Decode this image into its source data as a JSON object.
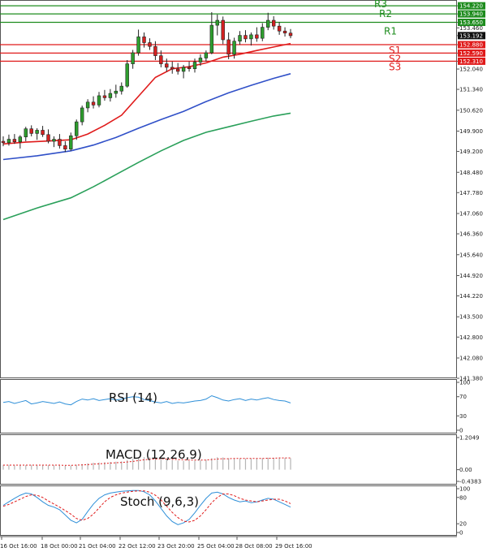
{
  "chart_data": [
    {
      "type": "candlestick",
      "title": "",
      "price_axis": {
        "ticks": [
          154.22,
          153.94,
          153.65,
          153.46,
          153.192,
          152.88,
          152.59,
          152.31,
          152.04,
          151.34,
          150.62,
          149.9,
          149.2,
          148.48,
          147.78,
          147.06,
          146.36,
          145.64,
          144.92,
          144.22,
          143.5,
          142.8,
          142.08,
          141.38
        ],
        "ylim": [
          141.38,
          154.42
        ]
      },
      "time_labels": [
        "16 Oct 16:00",
        "18 Oct 00:00",
        "21 Oct 04:00",
        "22 Oct 12:00",
        "23 Oct 20:00",
        "25 Oct 04:00",
        "28 Oct 08:00",
        "29 Oct 16:00"
      ],
      "current_price": 153.192,
      "levels": [
        {
          "name": "R3",
          "value": 154.22,
          "color": "#1e8c1e"
        },
        {
          "name": "R2",
          "value": 153.94,
          "color": "#1e8c1e"
        },
        {
          "name": "R1",
          "value": 153.65,
          "color": "#1e8c1e"
        },
        {
          "name": "S1",
          "value": 152.88,
          "color": "#e01b1b"
        },
        {
          "name": "S2",
          "value": 152.59,
          "color": "#e01b1b"
        },
        {
          "name": "S3",
          "value": 152.31,
          "color": "#e01b1b"
        }
      ],
      "candles": [
        {
          "o": 149.55,
          "h": 149.72,
          "l": 149.38,
          "c": 149.5
        },
        {
          "o": 149.5,
          "h": 149.78,
          "l": 149.4,
          "c": 149.62
        },
        {
          "o": 149.62,
          "h": 149.8,
          "l": 149.46,
          "c": 149.53
        },
        {
          "o": 149.53,
          "h": 149.76,
          "l": 149.3,
          "c": 149.7
        },
        {
          "o": 149.7,
          "h": 150.05,
          "l": 149.55,
          "c": 149.98
        },
        {
          "o": 149.98,
          "h": 150.1,
          "l": 149.72,
          "c": 149.82
        },
        {
          "o": 149.82,
          "h": 150.0,
          "l": 149.6,
          "c": 149.93
        },
        {
          "o": 149.93,
          "h": 150.08,
          "l": 149.7,
          "c": 149.78
        },
        {
          "o": 149.78,
          "h": 149.96,
          "l": 149.48,
          "c": 149.55
        },
        {
          "o": 149.55,
          "h": 149.72,
          "l": 149.35,
          "c": 149.62
        },
        {
          "o": 149.62,
          "h": 149.8,
          "l": 149.3,
          "c": 149.4
        },
        {
          "o": 149.4,
          "h": 149.55,
          "l": 149.18,
          "c": 149.28
        },
        {
          "o": 149.28,
          "h": 149.85,
          "l": 149.22,
          "c": 149.74
        },
        {
          "o": 149.74,
          "h": 150.3,
          "l": 149.6,
          "c": 150.22
        },
        {
          "o": 150.22,
          "h": 150.78,
          "l": 150.1,
          "c": 150.7
        },
        {
          "o": 150.7,
          "h": 151.0,
          "l": 150.55,
          "c": 150.9
        },
        {
          "o": 150.9,
          "h": 151.1,
          "l": 150.68,
          "c": 150.8
        },
        {
          "o": 150.8,
          "h": 151.25,
          "l": 150.72,
          "c": 151.12
        },
        {
          "o": 151.12,
          "h": 151.32,
          "l": 150.95,
          "c": 151.05
        },
        {
          "o": 151.05,
          "h": 151.35,
          "l": 150.92,
          "c": 151.2
        },
        {
          "o": 151.2,
          "h": 151.5,
          "l": 151.05,
          "c": 151.28
        },
        {
          "o": 151.28,
          "h": 151.58,
          "l": 151.16,
          "c": 151.45
        },
        {
          "o": 151.45,
          "h": 152.35,
          "l": 151.4,
          "c": 152.22
        },
        {
          "o": 152.22,
          "h": 152.7,
          "l": 152.05,
          "c": 152.6
        },
        {
          "o": 152.6,
          "h": 153.4,
          "l": 152.5,
          "c": 153.15
        },
        {
          "o": 153.15,
          "h": 153.3,
          "l": 152.78,
          "c": 152.95
        },
        {
          "o": 152.95,
          "h": 153.1,
          "l": 152.7,
          "c": 152.82
        },
        {
          "o": 152.82,
          "h": 153.0,
          "l": 152.35,
          "c": 152.5
        },
        {
          "o": 152.5,
          "h": 152.68,
          "l": 152.1,
          "c": 152.22
        },
        {
          "o": 152.22,
          "h": 152.4,
          "l": 151.95,
          "c": 152.1
        },
        {
          "o": 152.1,
          "h": 152.3,
          "l": 151.88,
          "c": 152.04
        },
        {
          "o": 152.04,
          "h": 152.25,
          "l": 151.85,
          "c": 151.96
        },
        {
          "o": 151.96,
          "h": 152.18,
          "l": 151.72,
          "c": 152.1
        },
        {
          "o": 152.1,
          "h": 152.3,
          "l": 151.95,
          "c": 152.05
        },
        {
          "o": 152.05,
          "h": 152.4,
          "l": 151.92,
          "c": 152.28
        },
        {
          "o": 152.28,
          "h": 152.55,
          "l": 152.15,
          "c": 152.42
        },
        {
          "o": 152.42,
          "h": 152.68,
          "l": 152.3,
          "c": 152.6
        },
        {
          "o": 152.6,
          "h": 154.0,
          "l": 152.55,
          "c": 153.55
        },
        {
          "o": 153.55,
          "h": 153.92,
          "l": 153.2,
          "c": 153.72
        },
        {
          "o": 153.72,
          "h": 153.85,
          "l": 152.9,
          "c": 153.05
        },
        {
          "o": 153.05,
          "h": 153.3,
          "l": 152.38,
          "c": 152.55
        },
        {
          "o": 152.55,
          "h": 153.12,
          "l": 152.4,
          "c": 153.0
        },
        {
          "o": 153.0,
          "h": 153.35,
          "l": 152.88,
          "c": 153.2
        },
        {
          "o": 153.2,
          "h": 153.38,
          "l": 152.96,
          "c": 153.08
        },
        {
          "o": 153.08,
          "h": 153.3,
          "l": 152.85,
          "c": 153.22
        },
        {
          "o": 153.22,
          "h": 153.48,
          "l": 152.98,
          "c": 153.1
        },
        {
          "o": 153.1,
          "h": 153.62,
          "l": 153.0,
          "c": 153.48
        },
        {
          "o": 153.48,
          "h": 153.98,
          "l": 153.38,
          "c": 153.72
        },
        {
          "o": 153.72,
          "h": 153.86,
          "l": 153.4,
          "c": 153.52
        },
        {
          "o": 153.52,
          "h": 153.66,
          "l": 153.22,
          "c": 153.35
        },
        {
          "o": 153.35,
          "h": 153.48,
          "l": 153.16,
          "c": 153.28
        },
        {
          "o": 153.28,
          "h": 153.42,
          "l": 153.1,
          "c": 153.19
        }
      ],
      "moving_averages": [
        {
          "color": "#e01b1b",
          "points": [
            [
              0,
              149.46
            ],
            [
              4,
              149.52
            ],
            [
              8,
              149.56
            ],
            [
              12,
              149.6
            ],
            [
              15,
              149.8
            ],
            [
              18,
              150.1
            ],
            [
              21,
              150.45
            ],
            [
              24,
              151.1
            ],
            [
              27,
              151.75
            ],
            [
              30,
              152.05
            ],
            [
              33,
              152.12
            ],
            [
              36,
              152.25
            ],
            [
              39,
              152.45
            ],
            [
              42,
              152.55
            ],
            [
              45,
              152.68
            ],
            [
              48,
              152.8
            ],
            [
              51,
              152.92
            ]
          ]
        },
        {
          "color": "#3050c8",
          "points": [
            [
              0,
              148.92
            ],
            [
              6,
              149.05
            ],
            [
              12,
              149.22
            ],
            [
              16,
              149.42
            ],
            [
              20,
              149.68
            ],
            [
              24,
              150.0
            ],
            [
              28,
              150.3
            ],
            [
              32,
              150.58
            ],
            [
              36,
              150.92
            ],
            [
              40,
              151.22
            ],
            [
              44,
              151.48
            ],
            [
              48,
              151.72
            ],
            [
              51,
              151.88
            ]
          ]
        },
        {
          "color": "#2aa05a",
          "points": [
            [
              0,
              146.85
            ],
            [
              6,
              147.25
            ],
            [
              12,
              147.6
            ],
            [
              16,
              147.98
            ],
            [
              20,
              148.4
            ],
            [
              24,
              148.82
            ],
            [
              28,
              149.22
            ],
            [
              32,
              149.58
            ],
            [
              36,
              149.86
            ],
            [
              40,
              150.05
            ],
            [
              44,
              150.24
            ],
            [
              48,
              150.42
            ],
            [
              51,
              150.52
            ]
          ]
        }
      ]
    },
    {
      "type": "line",
      "title": "RSI (14)",
      "ticks": [
        100,
        70,
        30,
        0
      ],
      "ylim": [
        0,
        100
      ],
      "series": [
        {
          "color": "#2e8fd8",
          "values": [
            58,
            60,
            56,
            59,
            62,
            55,
            57,
            60,
            58,
            56,
            59,
            55,
            53,
            60,
            65,
            63,
            66,
            62,
            64,
            66,
            63,
            65,
            68,
            70,
            69,
            64,
            62,
            59,
            57,
            60,
            56,
            58,
            57,
            59,
            61,
            62,
            65,
            72,
            68,
            63,
            61,
            64,
            66,
            62,
            65,
            63,
            66,
            68,
            64,
            62,
            61,
            57
          ]
        }
      ]
    },
    {
      "type": "bar",
      "title": "MACD (12,26,9)",
      "ticks": [
        1.2049,
        0.0,
        -0.4383
      ],
      "ylim": [
        -0.4383,
        1.2049
      ],
      "values": [
        0.18,
        0.18,
        0.17,
        0.17,
        0.17,
        0.18,
        0.18,
        0.18,
        0.17,
        0.17,
        0.16,
        0.15,
        0.16,
        0.18,
        0.21,
        0.24,
        0.26,
        0.27,
        0.28,
        0.29,
        0.3,
        0.31,
        0.36,
        0.41,
        0.46,
        0.47,
        0.47,
        0.45,
        0.42,
        0.39,
        0.36,
        0.34,
        0.33,
        0.33,
        0.34,
        0.35,
        0.37,
        0.43,
        0.47,
        0.46,
        0.43,
        0.42,
        0.42,
        0.42,
        0.42,
        0.42,
        0.43,
        0.45,
        0.45,
        0.45,
        0.44,
        0.43
      ],
      "signal": [
        0.17,
        0.17,
        0.17,
        0.17,
        0.17,
        0.17,
        0.17,
        0.17,
        0.17,
        0.17,
        0.17,
        0.16,
        0.16,
        0.17,
        0.18,
        0.19,
        0.21,
        0.22,
        0.23,
        0.25,
        0.26,
        0.27,
        0.29,
        0.31,
        0.34,
        0.37,
        0.39,
        0.4,
        0.41,
        0.4,
        0.39,
        0.38,
        0.37,
        0.36,
        0.36,
        0.36,
        0.36,
        0.38,
        0.4,
        0.41,
        0.41,
        0.42,
        0.42,
        0.42,
        0.42,
        0.42,
        0.42,
        0.43,
        0.43,
        0.44,
        0.44,
        0.44
      ]
    },
    {
      "type": "line",
      "title": "Stoch (9,6,3)",
      "ticks": [
        100,
        80,
        20,
        0
      ],
      "ylim": [
        0,
        100
      ],
      "series": [
        {
          "color": "#2e8fd8",
          "values": [
            62,
            70,
            78,
            85,
            90,
            88,
            80,
            70,
            62,
            58,
            52,
            40,
            28,
            22,
            30,
            48,
            65,
            78,
            86,
            90,
            92,
            94,
            95,
            96,
            96,
            93,
            86,
            72,
            55,
            38,
            25,
            18,
            22,
            30,
            45,
            62,
            78,
            90,
            92,
            88,
            80,
            74,
            70,
            72,
            68,
            70,
            74,
            78,
            76,
            70,
            64,
            58
          ]
        },
        {
          "color": "#e01b1b",
          "values": [
            60,
            64,
            70,
            76,
            82,
            86,
            85,
            80,
            72,
            65,
            58,
            50,
            42,
            32,
            28,
            32,
            42,
            56,
            70,
            80,
            86,
            90,
            92,
            94,
            95,
            95,
            92,
            85,
            74,
            60,
            46,
            34,
            26,
            24,
            28,
            38,
            52,
            68,
            80,
            88,
            88,
            84,
            78,
            74,
            72,
            70,
            72,
            74,
            76,
            76,
            72,
            66
          ]
        }
      ]
    }
  ]
}
